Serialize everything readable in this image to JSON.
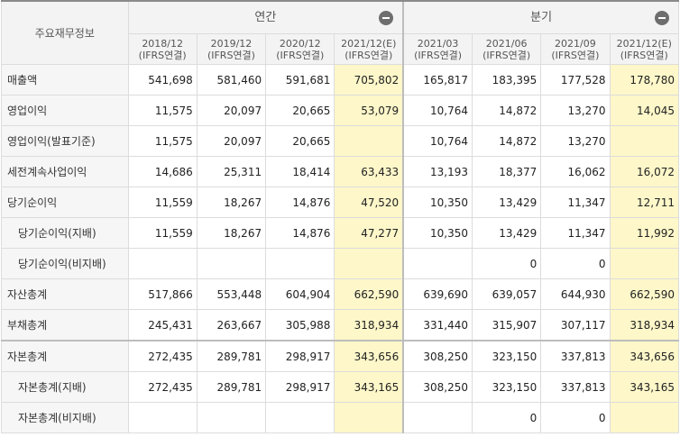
{
  "header": {
    "corner": "주요재무정보",
    "annual_label": "연간",
    "quarter_label": "분기",
    "periods": [
      {
        "date": "2018/12",
        "basis": "(IFRS연결)"
      },
      {
        "date": "2019/12",
        "basis": "(IFRS연결)"
      },
      {
        "date": "2020/12",
        "basis": "(IFRS연결)"
      },
      {
        "date": "2021/12(E)",
        "basis": "(IFRS연결)"
      },
      {
        "date": "2021/03",
        "basis": "(IFRS연결)"
      },
      {
        "date": "2021/06",
        "basis": "(IFRS연결)"
      },
      {
        "date": "2021/09",
        "basis": "(IFRS연결)"
      },
      {
        "date": "2021/12(E)",
        "basis": "(IFRS연결)"
      }
    ]
  },
  "rows": [
    {
      "label": "매출액",
      "values": [
        "541,698",
        "581,460",
        "591,681",
        "705,802",
        "165,817",
        "183,395",
        "177,528",
        "178,780"
      ]
    },
    {
      "label": "영업이익",
      "values": [
        "11,575",
        "20,097",
        "20,665",
        "53,079",
        "10,764",
        "14,872",
        "13,270",
        "14,045"
      ]
    },
    {
      "label": "영업이익(발표기준)",
      "values": [
        "11,575",
        "20,097",
        "20,665",
        "",
        "10,764",
        "14,872",
        "13,270",
        ""
      ]
    },
    {
      "label": "세전계속사업이익",
      "values": [
        "14,686",
        "25,311",
        "18,414",
        "63,433",
        "13,193",
        "18,377",
        "16,062",
        "16,072"
      ]
    },
    {
      "label": "당기순이익",
      "values": [
        "11,559",
        "18,267",
        "14,876",
        "47,520",
        "10,350",
        "13,429",
        "11,347",
        "12,711"
      ]
    },
    {
      "label": "당기순이익(지배)",
      "values": [
        "11,559",
        "18,267",
        "14,876",
        "47,277",
        "10,350",
        "13,429",
        "11,347",
        "11,992"
      ]
    },
    {
      "label": "당기순이익(비지배)",
      "values": [
        "",
        "",
        "",
        "",
        "",
        "0",
        "0",
        ""
      ]
    },
    {
      "label": "자산총계",
      "values": [
        "517,866",
        "553,448",
        "604,904",
        "662,590",
        "639,690",
        "639,057",
        "644,930",
        "662,590"
      ]
    },
    {
      "label": "부채총계",
      "values": [
        "245,431",
        "263,667",
        "305,988",
        "318,934",
        "331,440",
        "315,907",
        "307,117",
        "318,934"
      ]
    },
    {
      "label": "자본총계",
      "values": [
        "272,435",
        "289,781",
        "298,917",
        "343,656",
        "308,250",
        "323,150",
        "337,813",
        "343,656"
      ]
    },
    {
      "label": "자본총계(지배)",
      "values": [
        "272,435",
        "289,781",
        "298,917",
        "343,165",
        "308,250",
        "323,150",
        "337,813",
        "343,165"
      ]
    },
    {
      "label": "자본총계(비지배)",
      "values": [
        "",
        "",
        "",
        "",
        "",
        "0",
        "0",
        ""
      ]
    }
  ]
}
